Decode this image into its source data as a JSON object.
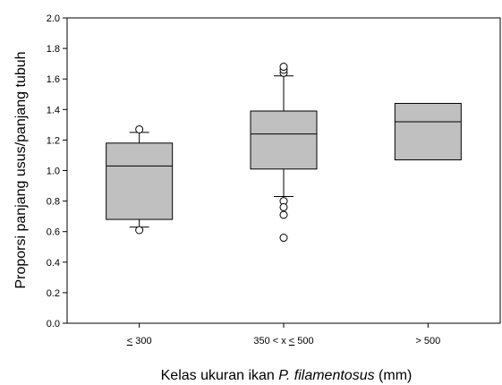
{
  "chart_data": {
    "type": "box",
    "xlabel_parts": {
      "prefix": "Kelas ukuran ikan ",
      "italic": "P. filamentosus",
      "suffix": " (mm)"
    },
    "ylabel": "Proporsi panjang usus/panjang tubuh",
    "ylim": [
      0.0,
      2.0
    ],
    "yticks": [
      "0.0",
      "0.2",
      "0.4",
      "0.6",
      "0.8",
      "1.0",
      "1.2",
      "1.4",
      "1.6",
      "1.8",
      "2.0"
    ],
    "grid": false,
    "categories": [
      {
        "label": "≤ 300",
        "q1": 0.68,
        "median": 1.03,
        "q3": 1.18,
        "whisker_low": 0.63,
        "whisker_high": 1.25,
        "outliers": [
          0.61,
          1.27
        ]
      },
      {
        "label": "350 < x ≤ 500",
        "q1": 1.01,
        "median": 1.24,
        "q3": 1.39,
        "whisker_low": 0.83,
        "whisker_high": 1.62,
        "outliers": [
          0.8,
          0.76,
          0.71,
          0.56,
          1.64,
          1.66,
          1.68
        ]
      },
      {
        "label": "> 500",
        "q1": 1.07,
        "median": 1.32,
        "q3": 1.44,
        "whisker_low": null,
        "whisker_high": null,
        "outliers": []
      }
    ]
  }
}
